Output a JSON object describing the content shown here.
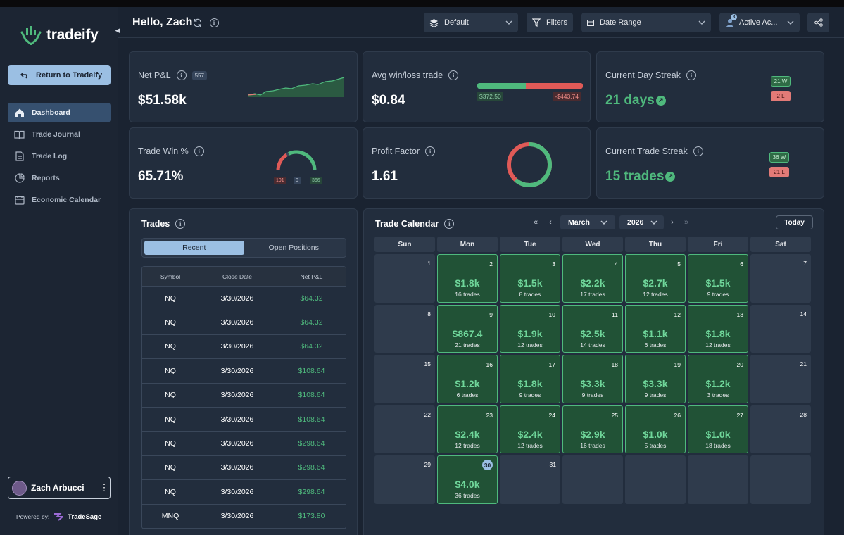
{
  "sidebar": {
    "logo_text": "tradeify",
    "return_label": "Return to Tradeify",
    "nav": [
      {
        "label": "Dashboard"
      },
      {
        "label": "Trade Journal"
      },
      {
        "label": "Trade Log"
      },
      {
        "label": "Reports"
      },
      {
        "label": "Economic Calendar"
      }
    ],
    "user_name": "Zach Arbucci",
    "powered_by": "Powered by:",
    "powered_brand": "TradeSage"
  },
  "header": {
    "greeting": "Hello, Zach",
    "layout_select": "Default",
    "filters_label": "Filters",
    "date_range_label": "Date Range",
    "accounts_label": "Active Ac...",
    "accounts_count": "3"
  },
  "stats": {
    "net_pnl": {
      "title": "Net P&L",
      "count": "557",
      "value": "$51.58k"
    },
    "avg_win_loss": {
      "title": "Avg win/loss trade",
      "value": "$0.84",
      "avg_win": "$372.50",
      "avg_loss": "-$443.74",
      "win_fraction": 0.46
    },
    "day_streak": {
      "title": "Current Day Streak",
      "value": "21 days",
      "wins": "21 W",
      "losses": "2 L"
    },
    "win_pct": {
      "title": "Trade Win %",
      "value": "65.71%",
      "losses": "191",
      "breakeven": "0",
      "wins": "366"
    },
    "profit_factor": {
      "title": "Profit Factor",
      "value": "1.61",
      "win_share": 0.617
    },
    "trade_streak": {
      "title": "Current Trade Streak",
      "value": "15 trades",
      "wins": "36 W",
      "losses": "21 L"
    }
  },
  "trades_panel": {
    "title": "Trades",
    "tabs": [
      "Recent",
      "Open Positions"
    ],
    "columns": [
      "Symbol",
      "Close Date",
      "Net P&L"
    ],
    "rows": [
      [
        "NQ",
        "3/30/2026",
        "$64.32"
      ],
      [
        "NQ",
        "3/30/2026",
        "$64.32"
      ],
      [
        "NQ",
        "3/30/2026",
        "$64.32"
      ],
      [
        "NQ",
        "3/30/2026",
        "$108.64"
      ],
      [
        "NQ",
        "3/30/2026",
        "$108.64"
      ],
      [
        "NQ",
        "3/30/2026",
        "$108.64"
      ],
      [
        "NQ",
        "3/30/2026",
        "$298.64"
      ],
      [
        "NQ",
        "3/30/2026",
        "$298.64"
      ],
      [
        "NQ",
        "3/30/2026",
        "$298.64"
      ],
      [
        "MNQ",
        "3/30/2026",
        "$173.80"
      ]
    ]
  },
  "calendar": {
    "title": "Trade Calendar",
    "month": "March",
    "year": "2026",
    "today_label": "Today",
    "weekdays": [
      "Sun",
      "Mon",
      "Tue",
      "Wed",
      "Thu",
      "Fri",
      "Sat"
    ],
    "today_day": "30",
    "days": [
      {
        "d": "1"
      },
      {
        "d": "2",
        "amt": "$1.8k",
        "tr": "16 trades"
      },
      {
        "d": "3",
        "amt": "$1.5k",
        "tr": "8 trades"
      },
      {
        "d": "4",
        "amt": "$2.2k",
        "tr": "17 trades"
      },
      {
        "d": "5",
        "amt": "$2.7k",
        "tr": "12 trades"
      },
      {
        "d": "6",
        "amt": "$1.5k",
        "tr": "9 trades"
      },
      {
        "d": "7"
      },
      {
        "d": "8"
      },
      {
        "d": "9",
        "amt": "$867.4",
        "tr": "21 trades"
      },
      {
        "d": "10",
        "amt": "$1.9k",
        "tr": "12 trades"
      },
      {
        "d": "11",
        "amt": "$2.5k",
        "tr": "14 trades"
      },
      {
        "d": "12",
        "amt": "$1.1k",
        "tr": "6 trades"
      },
      {
        "d": "13",
        "amt": "$1.8k",
        "tr": "12 trades"
      },
      {
        "d": "14"
      },
      {
        "d": "15"
      },
      {
        "d": "16",
        "amt": "$1.2k",
        "tr": "6 trades"
      },
      {
        "d": "17",
        "amt": "$1.8k",
        "tr": "9 trades"
      },
      {
        "d": "18",
        "amt": "$3.3k",
        "tr": "9 trades"
      },
      {
        "d": "19",
        "amt": "$3.3k",
        "tr": "9 trades"
      },
      {
        "d": "20",
        "amt": "$1.2k",
        "tr": "3 trades"
      },
      {
        "d": "21"
      },
      {
        "d": "22"
      },
      {
        "d": "23",
        "amt": "$2.4k",
        "tr": "12 trades"
      },
      {
        "d": "24",
        "amt": "$2.4k",
        "tr": "12 trades"
      },
      {
        "d": "25",
        "amt": "$2.9k",
        "tr": "16 trades"
      },
      {
        "d": "26",
        "amt": "$1.0k",
        "tr": "5 trades"
      },
      {
        "d": "27",
        "amt": "$1.0k",
        "tr": "18 trades"
      },
      {
        "d": "28"
      },
      {
        "d": "29"
      },
      {
        "d": "30",
        "amt": "$4.0k",
        "tr": "36 trades"
      },
      {
        "d": "31"
      },
      {
        "d": ""
      },
      {
        "d": ""
      },
      {
        "d": ""
      },
      {
        "d": ""
      }
    ]
  }
}
